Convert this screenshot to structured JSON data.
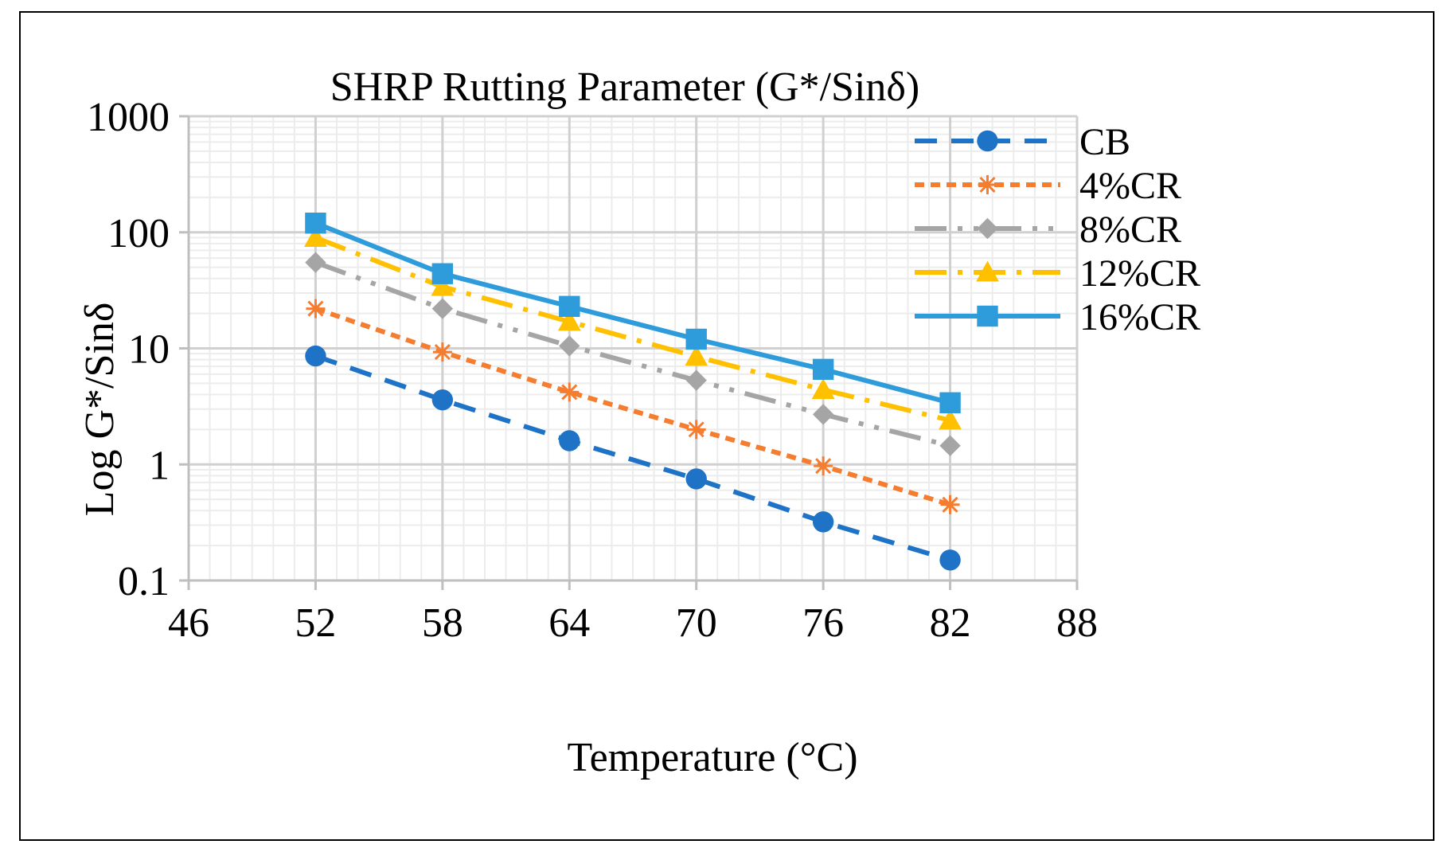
{
  "chart_data": {
    "type": "line",
    "title": "SHRP Rutting Parameter (G*/Sinδ)",
    "xlabel": "Temperature (°C)",
    "ylabel": "Log G*/Sinδ",
    "xlim": [
      46,
      88
    ],
    "ylim": [
      0.1,
      1000
    ],
    "yscale": "log",
    "grid": true,
    "legend_position": "right",
    "x_ticks": [
      "46",
      "52",
      "58",
      "64",
      "70",
      "76",
      "82",
      "88"
    ],
    "y_ticks": [
      "0.1",
      "1",
      "10",
      "100",
      "1000"
    ],
    "x_tick_values": [
      46,
      52,
      58,
      64,
      70,
      76,
      82,
      88
    ],
    "y_tick_values": [
      0.1,
      1,
      10,
      100,
      1000
    ],
    "x": [
      52,
      58,
      64,
      70,
      76,
      82
    ],
    "series": [
      {
        "name": "CB",
        "color": "#1F73C7",
        "marker": "circle",
        "dash": "dash",
        "values": [
          8.6,
          3.6,
          1.6,
          0.75,
          0.32,
          0.15
        ]
      },
      {
        "name": "4%CR",
        "color": "#F47D30",
        "marker": "asterisk",
        "dash": "shortdash",
        "values": [
          22,
          9.3,
          4.2,
          2.0,
          0.97,
          0.45
        ]
      },
      {
        "name": "8%CR",
        "color": "#A5A5A5",
        "marker": "diamond",
        "dash": "longdashdotdot",
        "values": [
          55,
          22,
          10.5,
          5.3,
          2.7,
          1.45
        ]
      },
      {
        "name": "12%CR",
        "color": "#FFC000",
        "marker": "triangle",
        "dash": "longdashdot",
        "values": [
          90,
          34,
          17,
          8.5,
          4.4,
          2.4
        ]
      },
      {
        "name": "16%CR",
        "color": "#2E9CDB",
        "marker": "square",
        "dash": "solid",
        "values": [
          120,
          44,
          23,
          12,
          6.6,
          3.4
        ]
      }
    ]
  }
}
